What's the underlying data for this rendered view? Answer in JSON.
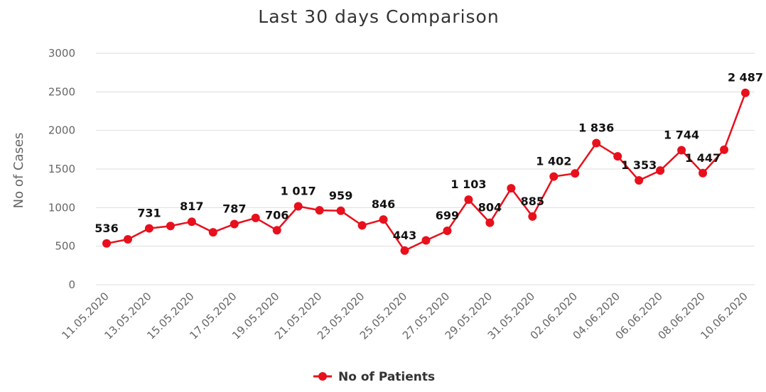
{
  "chart_data": {
    "type": "line",
    "title": "Last 30 days Comparison",
    "ylabel": "No of Cases",
    "xlabel": "",
    "ylim": [
      0,
      3000
    ],
    "yticks": [
      0,
      500,
      1000,
      1500,
      2000,
      2500,
      3000
    ],
    "grid": "horizontal",
    "legend_position": "bottom",
    "colors": {
      "series": "#e8101c",
      "grid": "#dddddd",
      "axis": "#cccccc"
    },
    "categories": [
      "11.05.2020",
      "12.05.2020",
      "13.05.2020",
      "14.05.2020",
      "15.05.2020",
      "16.05.2020",
      "17.05.2020",
      "18.05.2020",
      "19.05.2020",
      "20.05.2020",
      "21.05.2020",
      "22.05.2020",
      "23.05.2020",
      "24.05.2020",
      "25.05.2020",
      "26.05.2020",
      "27.05.2020",
      "28.05.2020",
      "29.05.2020",
      "30.05.2020",
      "31.05.2020",
      "01.06.2020",
      "02.06.2020",
      "03.06.2020",
      "04.06.2020",
      "05.06.2020",
      "06.06.2020",
      "07.06.2020",
      "08.06.2020",
      "09.06.2020",
      "10.06.2020"
    ],
    "xtick_labels": [
      "11.05.2020",
      "13.05.2020",
      "15.05.2020",
      "17.05.2020",
      "19.05.2020",
      "21.05.2020",
      "23.05.2020",
      "25.05.2020",
      "27.05.2020",
      "29.05.2020",
      "31.05.2020",
      "02.06.2020",
      "04.06.2020",
      "06.06.2020",
      "08.06.2020",
      "10.06.2020"
    ],
    "series": [
      {
        "name": "No of Patients",
        "values": [
          536,
          589,
          731,
          762,
          817,
          680,
          787,
          866,
          706,
          1017,
          965,
          959,
          769,
          846,
          443,
          575,
          699,
          1103,
          804,
          1250,
          885,
          1402,
          1443,
          1836,
          1665,
          1353,
          1480,
          1744,
          1447,
          1750,
          2487
        ],
        "labels": [
          "536",
          "",
          "731",
          "",
          "817",
          "",
          "787",
          "",
          "706",
          "1 017",
          "",
          "959",
          "",
          "846",
          "443",
          "",
          "699",
          "1 103",
          "804",
          "",
          "885",
          "1 402",
          "",
          "1 836",
          "",
          "1 353",
          "",
          "1 744",
          "1 447",
          "",
          "2 487"
        ]
      }
    ]
  }
}
